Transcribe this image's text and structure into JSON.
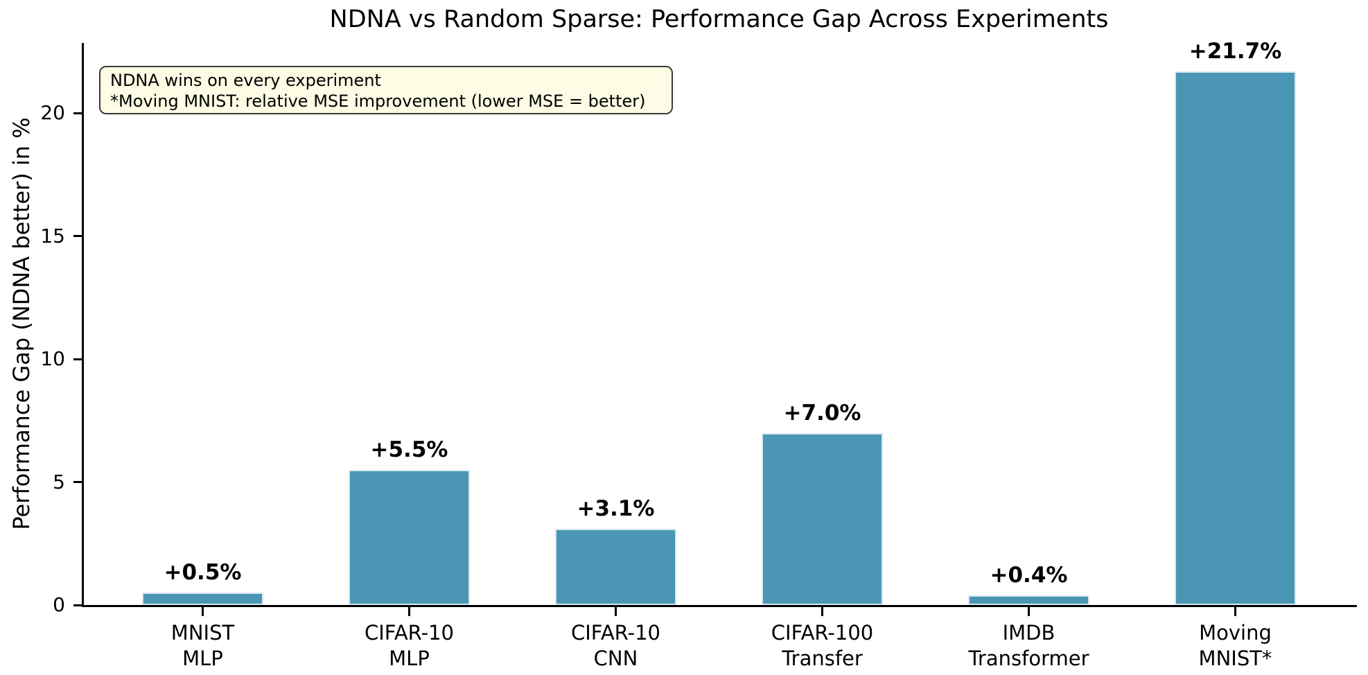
{
  "title": "NDNA vs Random Sparse: Performance Gap Across Experiments",
  "annotation": {
    "line1": "NDNA wins on every experiment",
    "line2": "*Moving MNIST: relative MSE improvement (lower MSE = better)"
  },
  "colors": {
    "bar": "#4a96b4",
    "bar_edge": "#d6e8f2",
    "annotation_bg": "#fdfce4",
    "annotation_border": "#3a3a3a",
    "axis": "#000000",
    "text": "#000000",
    "background": "#ffffff"
  },
  "chart_data": {
    "type": "bar",
    "title": "NDNA vs Random Sparse: Performance Gap Across Experiments",
    "ylabel": "Performance Gap (NDNA better) in %",
    "xlabel": "",
    "categories": [
      [
        "MNIST",
        "MLP"
      ],
      [
        "CIFAR-10",
        "MLP"
      ],
      [
        "CIFAR-10",
        "CNN"
      ],
      [
        "CIFAR-100",
        "Transfer"
      ],
      [
        "IMDB",
        "Transformer"
      ],
      [
        "Moving",
        "MNIST*"
      ]
    ],
    "values": [
      0.5,
      5.5,
      3.1,
      7.0,
      0.4,
      21.7
    ],
    "bar_labels": [
      "+0.5%",
      "+5.5%",
      "+3.1%",
      "+7.0%",
      "+0.4%",
      "+21.7%"
    ],
    "yticks": [
      0,
      5,
      10,
      15,
      20
    ],
    "ylim": [
      0,
      22.86
    ],
    "grid": false,
    "legend": "none"
  }
}
